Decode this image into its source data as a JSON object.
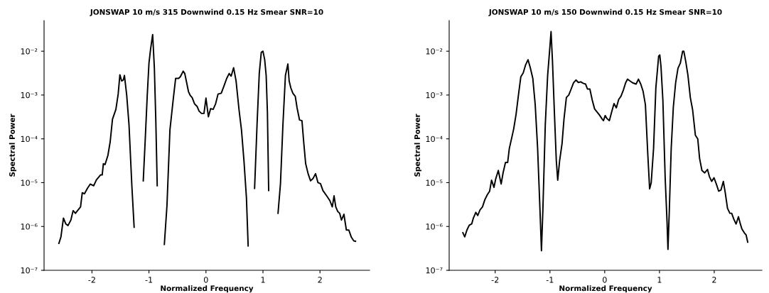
{
  "chart_data": [
    {
      "type": "line",
      "title": "JONSWAP 10 m/s 315 Downwind 0.15 Hz Smear SNR=10",
      "xlabel": "Normalized Frequency",
      "ylabel": "Spectral Power",
      "log": "y",
      "grid": false,
      "marker": "none",
      "line_style": "solid",
      "xlim": [
        -2.84,
        2.87
      ],
      "xticks": [
        -2,
        -1,
        0,
        1,
        2
      ],
      "ylim": [
        1e-07,
        0.05
      ],
      "yticks": [
        {
          "value": 1e-07,
          "label": "10⁻⁷"
        },
        {
          "value": 1e-06,
          "label": "10⁻⁶"
        },
        {
          "value": 1e-05,
          "label": "10⁻⁵"
        },
        {
          "value": 0.0001,
          "label": "10⁻⁴"
        },
        {
          "value": 0.001,
          "label": "10⁻³"
        },
        {
          "value": 0.01,
          "label": "10⁻²"
        }
      ],
      "series": [
        {
          "color": "#000000",
          "x": [
            -2.58,
            -2.545,
            -2.5,
            -2.46,
            -2.42,
            -2.37,
            -2.33,
            -2.29,
            -2.23,
            -2.2,
            -2.17,
            -2.13,
            -2.08,
            -2.03,
            -1.97,
            -1.92,
            -1.85,
            -1.82,
            -1.8,
            -1.77,
            -1.72,
            -1.68,
            -1.64,
            -1.58,
            -1.54,
            -1.51,
            -1.48,
            -1.45,
            -1.43,
            -1.39,
            -1.35,
            -1.3,
            -1.26,
            -1.18,
            -1.1,
            -1.065,
            -1.03,
            -1.0,
            -0.97,
            -0.935,
            -0.905,
            -0.88,
            -0.855,
            -0.79,
            -0.73,
            -0.684,
            -0.632,
            -0.576,
            -0.532,
            -0.48,
            -0.45,
            -0.4,
            -0.372,
            -0.338,
            -0.307,
            -0.277,
            -0.242,
            -0.2,
            -0.156,
            -0.121,
            -0.078,
            -0.035,
            0.0,
            0.043,
            0.082,
            0.126,
            0.169,
            0.212,
            0.268,
            0.312,
            0.364,
            0.407,
            0.442,
            0.485,
            0.528,
            0.58,
            0.623,
            0.667,
            0.71,
            0.74,
            0.8,
            0.853,
            0.896,
            0.935,
            0.97,
            1.0,
            1.03,
            1.056,
            1.078,
            1.1,
            1.18,
            1.264,
            1.307,
            1.35,
            1.394,
            1.437,
            1.459,
            1.489,
            1.524,
            1.567,
            1.597,
            1.641,
            1.684,
            1.714,
            1.749,
            1.792,
            1.835,
            1.879,
            1.922,
            1.965,
            2.009,
            2.052,
            2.117,
            2.173,
            2.216,
            2.247,
            2.277,
            2.312,
            2.346,
            2.377,
            2.42,
            2.463,
            2.506,
            2.55,
            2.593,
            2.623
          ],
          "values": [
            4.1e-07,
            5.7e-07,
            1.55e-06,
            1.15e-06,
            1.05e-06,
            1.4e-06,
            2.3e-06,
            2e-06,
            2.5e-06,
            2.8e-06,
            5.9e-06,
            5.6e-06,
            7.4e-06,
            9.3e-06,
            8.5e-06,
            1.17e-05,
            1.5e-05,
            1.5e-05,
            2.7e-05,
            2.6e-05,
            4.2e-05,
            8.6e-05,
            0.00028,
            0.00047,
            0.00105,
            0.0029,
            0.0021,
            0.0022,
            0.0028,
            0.00098,
            0.00021,
            8.5e-06,
            9.6e-07,
            null,
            1.1e-05,
            9.8e-05,
            0.00098,
            0.0053,
            0.0115,
            0.024,
            0.0041,
            0.00027,
            8.5e-06,
            null,
            3.9e-07,
            3e-06,
            0.00016,
            0.00076,
            0.0024,
            0.0024,
            0.0026,
            0.0035,
            0.0031,
            0.0019,
            0.0012,
            0.00098,
            0.00087,
            0.00063,
            0.00055,
            0.00043,
            0.00038,
            0.00038,
            0.00085,
            0.00032,
            0.00049,
            0.00047,
            0.00063,
            0.00105,
            0.0011,
            0.00155,
            0.0024,
            0.0031,
            0.0027,
            0.0042,
            0.0021,
            0.00046,
            0.00016,
            3.1e-05,
            4.5e-06,
            3.6e-07,
            null,
            7.4e-06,
            0.00021,
            0.0031,
            0.0094,
            0.01,
            0.0064,
            0.0028,
            0.0004,
            6.6e-06,
            null,
            2e-06,
            9.5e-06,
            0.00021,
            0.0028,
            0.0051,
            0.0021,
            0.00145,
            0.0011,
            0.00093,
            0.00052,
            0.00027,
            0.00026,
            8.6e-05,
            2.7e-05,
            1.6e-05,
            1.1e-05,
            1.25e-05,
            1.6e-05,
            1e-05,
            9.5e-06,
            6.6e-06,
            5e-06,
            3.9e-06,
            2.8e-06,
            5e-06,
            2.8e-06,
            2.2e-06,
            2e-06,
            1.4e-06,
            1.9e-06,
            8.3e-07,
            8.3e-07,
            5.7e-07,
            4.7e-07,
            4.6e-07
          ]
        }
      ]
    },
    {
      "type": "line",
      "title": "JONSWAP 10 m/s 150 Downwind 0.15 Hz Smear SNR=10",
      "xlabel": "Normalized Frequency",
      "ylabel": "Spectral Power",
      "log": "y",
      "grid": false,
      "marker": "none",
      "line_style": "solid",
      "xlim": [
        -2.84,
        2.87
      ],
      "xticks": [
        -2,
        -1,
        0,
        1,
        2
      ],
      "ylim": [
        1e-07,
        0.05
      ],
      "yticks": [
        {
          "value": 1e-07,
          "label": "10⁻⁷"
        },
        {
          "value": 1e-06,
          "label": "10⁻⁶"
        },
        {
          "value": 1e-05,
          "label": "10⁻⁵"
        },
        {
          "value": 0.0001,
          "label": "10⁻⁴"
        },
        {
          "value": 0.001,
          "label": "10⁻³"
        },
        {
          "value": 0.01,
          "label": "10⁻²"
        }
      ],
      "series": [
        {
          "color": "#000000",
          "x": [
            -2.59,
            -2.556,
            -2.516,
            -2.473,
            -2.429,
            -2.398,
            -2.354,
            -2.319,
            -2.276,
            -2.232,
            -2.188,
            -2.144,
            -2.101,
            -2.066,
            -2.022,
            -1.991,
            -1.943,
            -1.891,
            -1.856,
            -1.812,
            -1.772,
            -1.742,
            -1.707,
            -1.663,
            -1.619,
            -1.575,
            -1.532,
            -1.488,
            -1.444,
            -1.4,
            -1.357,
            -1.313,
            -1.269,
            -1.225,
            -1.182,
            -1.155,
            -1.129,
            -1.085,
            -1.042,
            -1.007,
            -0.98,
            -0.954,
            -0.919,
            -0.884,
            -0.858,
            -0.823,
            -0.779,
            -0.744,
            -0.7,
            -0.656,
            -0.613,
            -0.569,
            -0.525,
            -0.481,
            -0.438,
            -0.394,
            -0.35,
            -0.315,
            -0.271,
            -0.228,
            -0.184,
            -0.14,
            -0.096,
            -0.044,
            -0.022,
            0.008,
            0.042,
            0.085,
            0.127,
            0.17,
            0.212,
            0.255,
            0.297,
            0.34,
            0.382,
            0.416,
            0.459,
            0.51,
            0.573,
            0.616,
            0.658,
            0.701,
            0.743,
            0.786,
            0.82,
            0.849,
            0.892,
            0.934,
            0.985,
            1.006,
            1.028,
            1.062,
            1.104,
            1.138,
            1.155,
            1.18,
            1.214,
            1.253,
            1.295,
            1.338,
            1.38,
            1.423,
            1.444,
            1.478,
            1.52,
            1.563,
            1.605,
            1.656,
            1.699,
            1.732,
            1.775,
            1.826,
            1.877,
            1.911,
            1.953,
            1.996,
            2.038,
            2.081,
            2.123,
            2.166,
            2.2,
            2.242,
            2.285,
            2.318,
            2.357,
            2.399,
            2.442,
            2.471,
            2.505,
            2.548,
            2.582,
            2.611
          ],
          "values": [
            7.2e-07,
            5.8e-07,
            8.3e-07,
            1.07e-06,
            1.14e-06,
            1.56e-06,
            2.1e-06,
            1.78e-06,
            2.4e-06,
            2.8e-06,
            4.1e-06,
            5.3e-06,
            6.4e-06,
            1.14e-05,
            7.8e-06,
            1.21e-05,
            1.9e-05,
            9.3e-06,
            1.67e-05,
            2.9e-05,
            2.9e-05,
            6e-05,
            9.4e-05,
            0.000166,
            0.00036,
            0.001,
            0.0026,
            0.0032,
            0.0049,
            0.0064,
            0.0041,
            0.0024,
            0.0006,
            6e-05,
            2.4e-06,
            2.8e-07,
            2.4e-06,
            0.00021,
            0.0028,
            0.01,
            0.028,
            0.006,
            0.00041,
            3.2e-05,
            1.14e-05,
            3.2e-05,
            7.8e-05,
            0.00028,
            0.00088,
            0.001,
            0.00137,
            0.0019,
            0.0022,
            0.00193,
            0.002,
            0.00185,
            0.00178,
            0.00137,
            0.00137,
            0.00077,
            0.00048,
            0.00041,
            0.00035,
            0.00028,
            0.00026,
            0.00034,
            0.00029,
            0.00026,
            0.00041,
            0.00064,
            0.00051,
            0.00079,
            0.00094,
            0.00129,
            0.0019,
            0.0023,
            0.0021,
            0.0019,
            0.00178,
            0.0023,
            0.00178,
            0.00121,
            0.0006,
            4.6e-05,
            7.2e-06,
            1e-05,
            6e-05,
            0.00147,
            0.0077,
            0.0082,
            0.0044,
            0.00077,
            1.29e-05,
            1.29e-06,
            3e-07,
            2.4e-06,
            6e-05,
            0.00053,
            0.0019,
            0.0041,
            0.0053,
            0.01,
            0.01,
            0.006,
            0.0028,
            0.00088,
            0.00046,
            0.00012,
            0.0001,
            3.6e-05,
            1.9e-05,
            1.67e-05,
            2e-05,
            1.38e-05,
            1.07e-05,
            1.29e-05,
            9.3e-06,
            6.4e-06,
            6.8e-06,
            1.07e-05,
            6e-06,
            2.6e-06,
            2e-06,
            2e-06,
            1.47e-06,
            1.14e-06,
            1.67e-06,
            1.21e-06,
            8.8e-07,
            7.2e-07,
            6.4e-07,
            4.4e-07
          ]
        }
      ]
    }
  ]
}
